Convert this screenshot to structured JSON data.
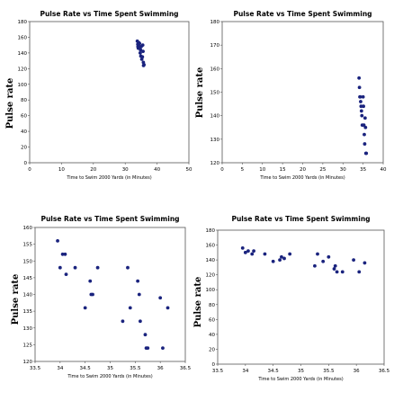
{
  "chart_data": [
    {
      "type": "scatter",
      "title": "Pulse Rate vs Time Spent Swimming",
      "xlabel": "Time to Swim 2000 Yards (in Minutes)",
      "ylabel": "Pulse rate",
      "xlim": [
        0,
        50
      ],
      "ylim": [
        0,
        180
      ],
      "xticks": [
        "0",
        "10",
        "20",
        "30",
        "40",
        "50"
      ],
      "yticks": [
        "0",
        "20",
        "40",
        "60",
        "80",
        "100",
        "120",
        "140",
        "160",
        "180"
      ],
      "grid": false,
      "marker_color": "#1a237e",
      "points": [
        [
          33.8,
          155
        ],
        [
          33.95,
          151
        ],
        [
          34.0,
          148
        ],
        [
          34.1,
          146
        ],
        [
          34.3,
          153
        ],
        [
          34.5,
          152
        ],
        [
          34.6,
          148
        ],
        [
          34.7,
          140
        ],
        [
          34.8,
          144
        ],
        [
          34.9,
          136
        ],
        [
          35.0,
          148
        ],
        [
          35.2,
          132
        ],
        [
          35.4,
          135
        ],
        [
          35.5,
          150
        ],
        [
          35.6,
          142
        ],
        [
          35.7,
          128
        ],
        [
          35.75,
          124
        ],
        [
          35.9,
          125
        ]
      ]
    },
    {
      "type": "scatter",
      "title": "Pulse Rate vs Time Spent Swimming",
      "xlabel": "Time to Swim 2000 Yards (in Minutes)",
      "ylabel": "Pulse rate",
      "xlim": [
        0,
        40
      ],
      "ylim": [
        120,
        180
      ],
      "xticks": [
        "0",
        "5",
        "10",
        "15",
        "20",
        "25",
        "30",
        "35",
        "40"
      ],
      "yticks": [
        "120",
        "130",
        "140",
        "150",
        "160",
        "170",
        "180"
      ],
      "grid": false,
      "marker_color": "#1a237e",
      "points": [
        [
          34.0,
          156
        ],
        [
          34.1,
          152
        ],
        [
          34.2,
          148
        ],
        [
          34.3,
          148
        ],
        [
          34.4,
          146
        ],
        [
          34.5,
          144
        ],
        [
          34.6,
          142
        ],
        [
          34.7,
          140
        ],
        [
          34.8,
          136
        ],
        [
          35.0,
          148
        ],
        [
          35.1,
          144
        ],
        [
          35.2,
          136
        ],
        [
          35.3,
          132
        ],
        [
          35.4,
          128
        ],
        [
          35.5,
          139
        ],
        [
          35.6,
          135
        ],
        [
          35.7,
          124
        ],
        [
          35.8,
          124
        ]
      ]
    },
    {
      "type": "scatter",
      "title": "Pulse Rate vs Time Spent Swimming",
      "xlabel": "Time to Swim 2000 Yards (in Minutes)",
      "ylabel": "Pulse rate",
      "xlim": [
        33.5,
        36.5
      ],
      "ylim": [
        120,
        160
      ],
      "xticks": [
        "33.5",
        "34",
        "34.5",
        "35",
        "35.5",
        "36",
        "36.5"
      ],
      "yticks": [
        "120",
        "125",
        "130",
        "135",
        "140",
        "145",
        "150",
        "155",
        "160"
      ],
      "grid": false,
      "marker_color": "#1a237e",
      "points": [
        [
          33.95,
          156
        ],
        [
          34.0,
          148
        ],
        [
          34.05,
          152
        ],
        [
          34.1,
          152
        ],
        [
          34.12,
          146
        ],
        [
          34.3,
          148
        ],
        [
          34.5,
          136
        ],
        [
          34.6,
          144
        ],
        [
          34.62,
          140
        ],
        [
          34.65,
          140
        ],
        [
          34.75,
          148
        ],
        [
          35.25,
          132
        ],
        [
          35.35,
          148
        ],
        [
          35.4,
          136
        ],
        [
          35.55,
          144
        ],
        [
          35.58,
          140
        ],
        [
          35.6,
          132
        ],
        [
          35.7,
          128
        ],
        [
          35.72,
          124
        ],
        [
          35.75,
          124
        ],
        [
          36.0,
          139
        ],
        [
          36.05,
          124
        ],
        [
          36.15,
          136
        ]
      ]
    },
    {
      "type": "scatter",
      "title": "Pulse Rate vs Time Spent Swimming",
      "xlabel": "Time to Swim 2000 Yards (in Minutes)",
      "ylabel": "Pulse rate",
      "xlim": [
        33.5,
        36.5
      ],
      "ylim": [
        0,
        180
      ],
      "xticks": [
        "33.5",
        "34",
        "34.5",
        "35",
        "35.5",
        "36",
        "36.5"
      ],
      "yticks": [
        "0",
        "20",
        "40",
        "60",
        "80",
        "100",
        "120",
        "140",
        "160",
        "180"
      ],
      "grid": false,
      "marker_color": "#1a237e",
      "points": [
        [
          33.95,
          156
        ],
        [
          34.0,
          150
        ],
        [
          34.05,
          152
        ],
        [
          34.12,
          148
        ],
        [
          34.15,
          152
        ],
        [
          34.35,
          148
        ],
        [
          34.5,
          138
        ],
        [
          34.62,
          140
        ],
        [
          34.65,
          144
        ],
        [
          34.7,
          142
        ],
        [
          34.8,
          148
        ],
        [
          35.25,
          132
        ],
        [
          35.3,
          148
        ],
        [
          35.4,
          138
        ],
        [
          35.5,
          144
        ],
        [
          35.6,
          128
        ],
        [
          35.62,
          132
        ],
        [
          35.65,
          124
        ],
        [
          35.75,
          124
        ],
        [
          35.95,
          140
        ],
        [
          36.05,
          124
        ],
        [
          36.15,
          136
        ]
      ]
    }
  ]
}
